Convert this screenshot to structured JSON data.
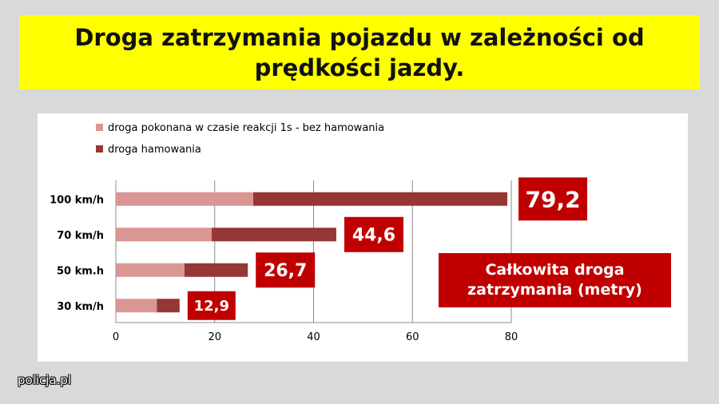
{
  "title": "Droga zatrzymania pojazdu w zależności od prędkości jazdy.",
  "source": "policja.pl",
  "chart_data": {
    "type": "bar",
    "orientation": "horizontal",
    "stacked": true,
    "categories": [
      "100 km/h",
      "70 km/h",
      "50 km.h",
      "30 km/h"
    ],
    "series": [
      {
        "name": "droga pokonana w czasie reakcji 1s - bez hamowania",
        "values": [
          27.8,
          19.4,
          13.9,
          8.3
        ],
        "color": "#da9694"
      },
      {
        "name": "droga hamowania",
        "values": [
          51.4,
          25.2,
          12.8,
          4.6
        ],
        "color": "#953735"
      }
    ],
    "totals": [
      "79,2",
      "44,6",
      "26,7",
      "12,9"
    ],
    "total_label_color": "#c00000",
    "xlim": [
      0,
      80
    ],
    "xticks": [
      "0",
      "20",
      "40",
      "60",
      "80"
    ],
    "grid": "vertical",
    "legend_position": "top-left",
    "annotation": "Całkowita droga zatrzymania (metry)"
  }
}
